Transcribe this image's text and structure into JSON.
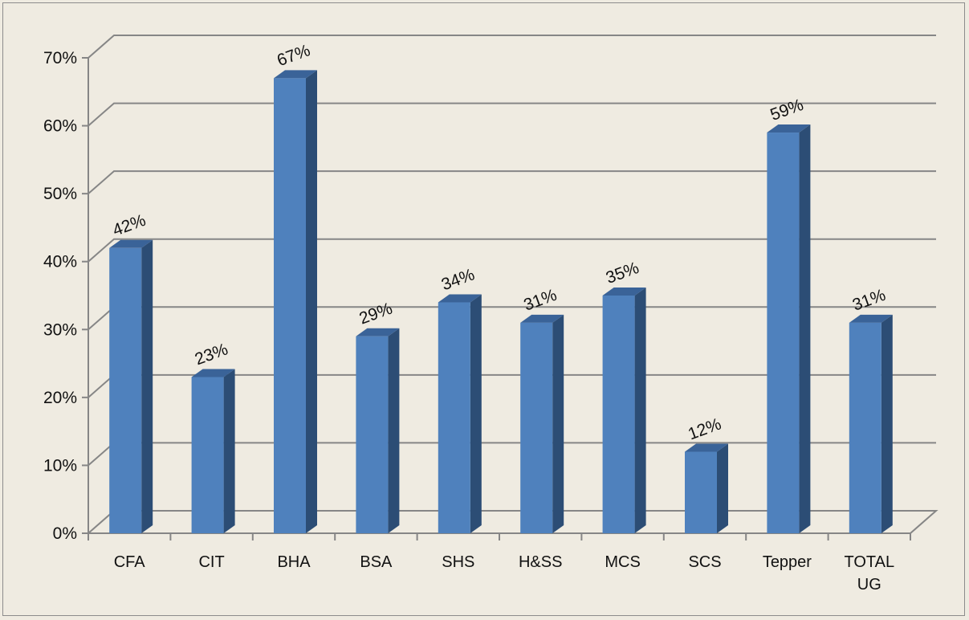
{
  "chart_data": {
    "type": "bar",
    "style": "3d-column",
    "categories": [
      "CFA",
      "CIT",
      "BHA",
      "BSA",
      "SHS",
      "H&SS",
      "MCS",
      "SCS",
      "Tepper",
      "TOTAL UG"
    ],
    "category_lines": [
      [
        "CFA"
      ],
      [
        "CIT"
      ],
      [
        "BHA"
      ],
      [
        "BSA"
      ],
      [
        "SHS"
      ],
      [
        "H&SS"
      ],
      [
        "MCS"
      ],
      [
        "SCS"
      ],
      [
        "Tepper"
      ],
      [
        "TOTAL",
        "UG"
      ]
    ],
    "values": [
      42,
      23,
      67,
      29,
      34,
      31,
      35,
      12,
      59,
      31
    ],
    "data_labels": [
      "42%",
      "23%",
      "67%",
      "29%",
      "34%",
      "31%",
      "35%",
      "12%",
      "59%",
      "31%"
    ],
    "y_ticks": [
      0,
      10,
      20,
      30,
      40,
      50,
      60,
      70
    ],
    "y_tick_labels": [
      "0%",
      "10%",
      "20%",
      "30%",
      "40%",
      "50%",
      "60%",
      "70%"
    ],
    "ylim": [
      0,
      70
    ],
    "title": "",
    "xlabel": "",
    "ylabel": "",
    "grid": true,
    "legend": "none",
    "colors": {
      "bar_front": "#4f81bd",
      "bar_side": "#2c4d75",
      "bar_top": "#3a6398",
      "gridline": "#868686",
      "background": "#efebe1"
    }
  }
}
